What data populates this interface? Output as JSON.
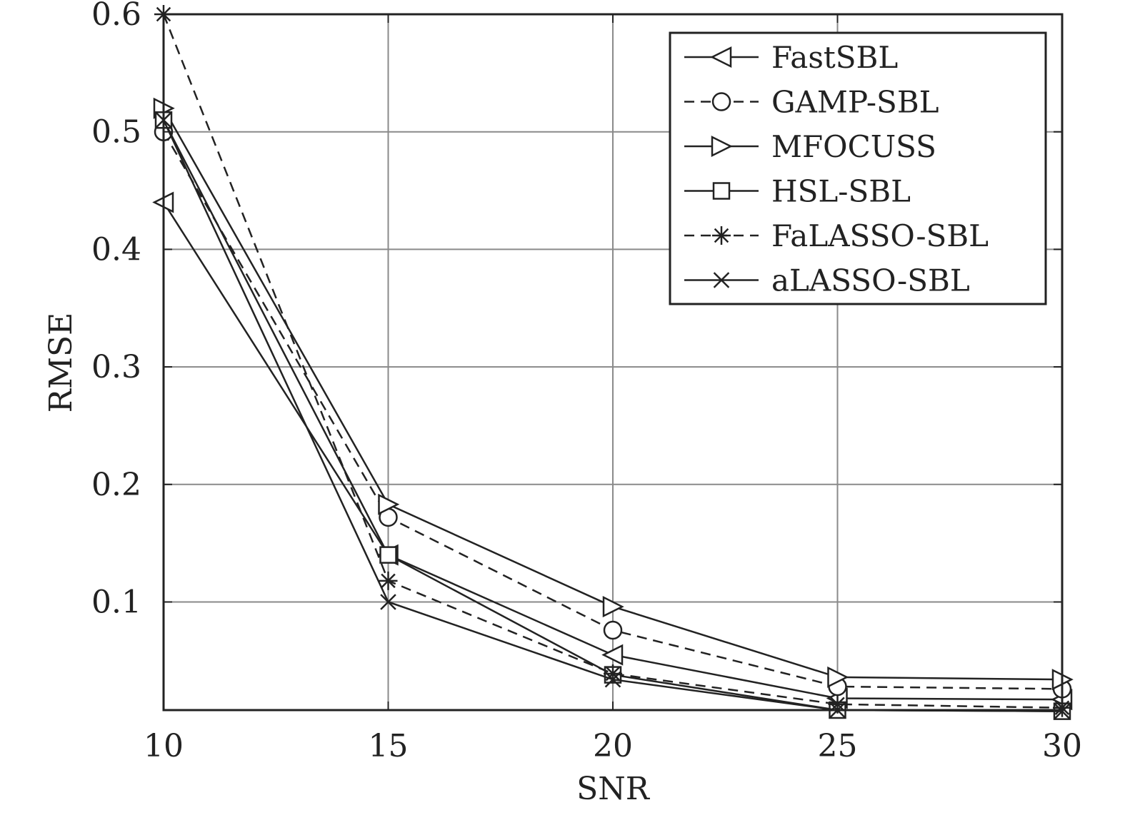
{
  "chart_data": {
    "type": "line",
    "xlabel": "SNR",
    "ylabel": "RMSE",
    "x": [
      10,
      15,
      20,
      25,
      30
    ],
    "xlim": [
      10,
      30
    ],
    "ylim": [
      0.008,
      0.6
    ],
    "xticks": [
      "10",
      "15",
      "20",
      "25",
      "30"
    ],
    "yticks": [
      "0.1",
      "0.2",
      "0.3",
      "0.4",
      "0.5",
      "0.6"
    ],
    "grid": true,
    "legend_position": "top-right",
    "series": [
      {
        "name": "FastSBL",
        "values": [
          0.44,
          0.14,
          0.055,
          0.018,
          0.017
        ],
        "dash": "solid",
        "marker": "triangle-left"
      },
      {
        "name": "GAMP-SBL",
        "values": [
          0.5,
          0.172,
          0.076,
          0.028,
          0.026
        ],
        "dash": "dashed",
        "marker": "circle"
      },
      {
        "name": "MFOCUSS",
        "values": [
          0.52,
          0.183,
          0.096,
          0.036,
          0.034
        ],
        "dash": "solid",
        "marker": "triangle-right"
      },
      {
        "name": "HSL-SBL",
        "values": [
          0.51,
          0.14,
          0.038,
          0.008,
          0.007
        ],
        "dash": "solid",
        "marker": "square"
      },
      {
        "name": "FaLASSO-SBL",
        "values": [
          0.6,
          0.118,
          0.039,
          0.013,
          0.01
        ],
        "dash": "dashed",
        "marker": "asterisk"
      },
      {
        "name": "aLASSO-SBL",
        "values": [
          0.51,
          0.1,
          0.034,
          0.008,
          0.007
        ],
        "dash": "solid",
        "marker": "x"
      }
    ]
  }
}
